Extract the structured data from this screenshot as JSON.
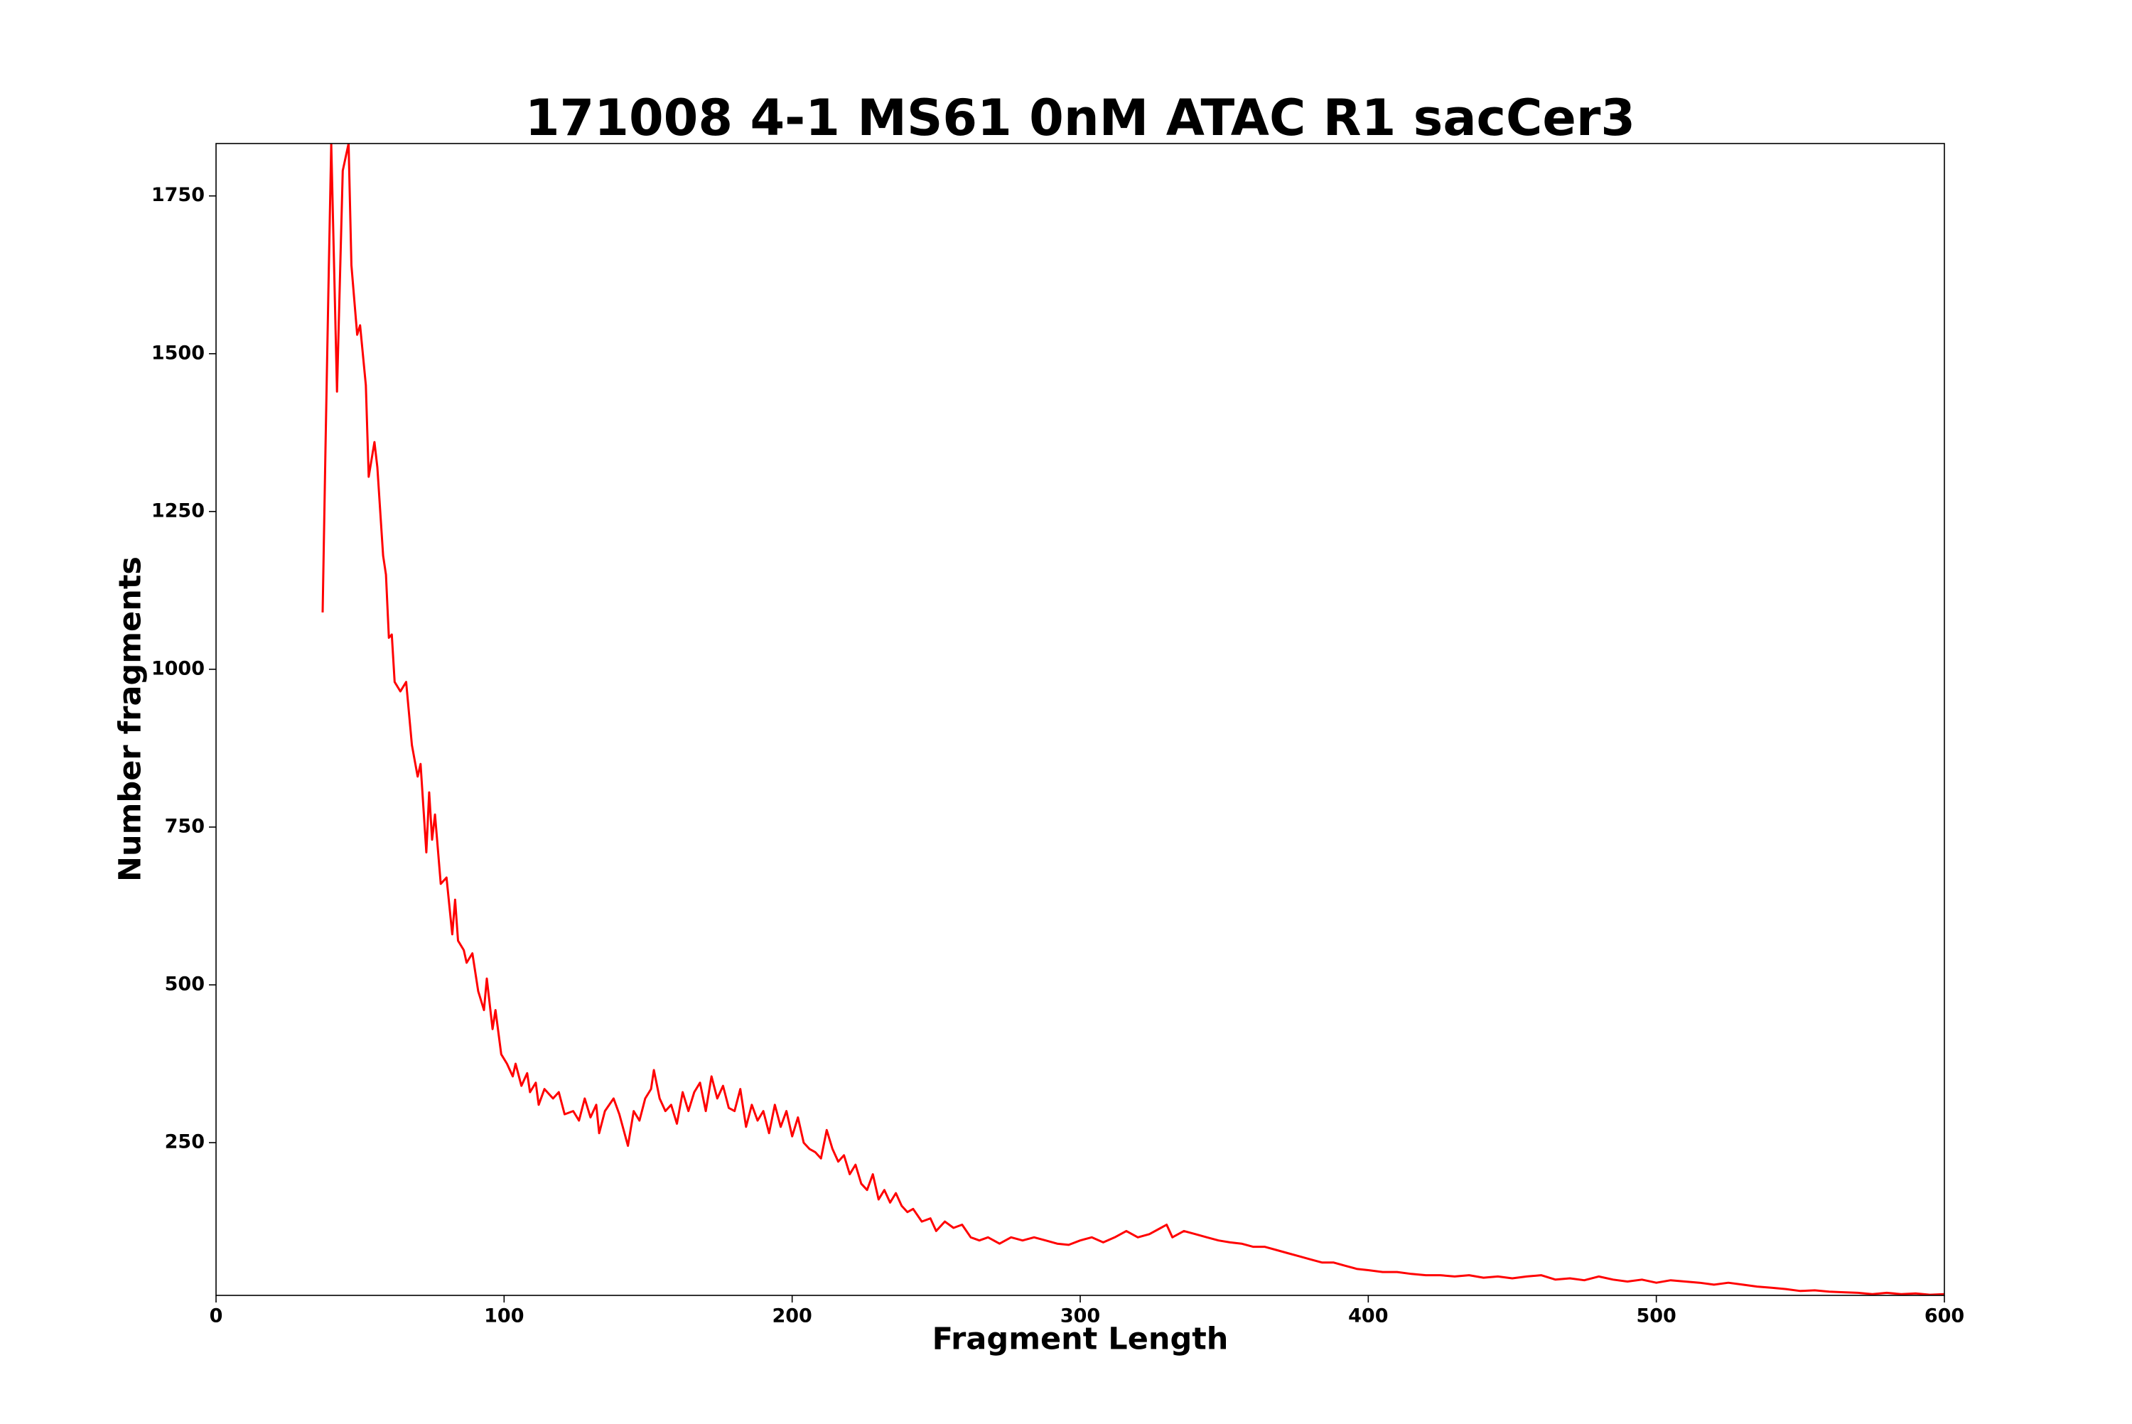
{
  "chart_data": {
    "type": "line",
    "title": "171008 4-1 MS61 0nM ATAC R1 sacCer3",
    "x_label": "Fragment Length",
    "y_label": "Number fragments",
    "xlim": [
      0,
      600
    ],
    "xticks": [
      0,
      100,
      200,
      300,
      400,
      500,
      600
    ],
    "ylim": [
      8,
      1833
    ],
    "yticks": [
      250,
      500,
      750,
      1000,
      1250,
      1500,
      1750
    ],
    "grid": false,
    "series": [
      {
        "name": "171008 4-1 MS61 0nM ATAC R1 sacCer3",
        "color": "#ff0000",
        "x": [
          37,
          38,
          39,
          40,
          42,
          44,
          46,
          47,
          49,
          50,
          52,
          53,
          55,
          56,
          58,
          59,
          60,
          61,
          62,
          64,
          66,
          68,
          70,
          71,
          73,
          74,
          75,
          76,
          78,
          80,
          82,
          83,
          84,
          86,
          87,
          89,
          91,
          93,
          94,
          96,
          97,
          99,
          101,
          103,
          104,
          106,
          108,
          109,
          111,
          112,
          114,
          117,
          119,
          121,
          124,
          126,
          128,
          130,
          132,
          133,
          135,
          138,
          140,
          143,
          145,
          147,
          149,
          151,
          152,
          154,
          156,
          158,
          160,
          162,
          164,
          166,
          168,
          170,
          172,
          174,
          176,
          178,
          180,
          182,
          184,
          186,
          188,
          190,
          192,
          194,
          196,
          198,
          200,
          202,
          204,
          206,
          208,
          210,
          212,
          214,
          216,
          218,
          220,
          222,
          224,
          226,
          228,
          230,
          232,
          234,
          236,
          238,
          240,
          242,
          245,
          248,
          250,
          253,
          256,
          259,
          262,
          265,
          268,
          272,
          276,
          280,
          284,
          288,
          292,
          296,
          300,
          304,
          308,
          312,
          316,
          320,
          324,
          328,
          330,
          332,
          336,
          340,
          344,
          348,
          352,
          356,
          360,
          364,
          368,
          372,
          376,
          380,
          384,
          388,
          392,
          396,
          400,
          405,
          410,
          415,
          420,
          425,
          430,
          435,
          440,
          445,
          450,
          455,
          460,
          465,
          470,
          475,
          480,
          485,
          490,
          495,
          500,
          505,
          510,
          515,
          520,
          525,
          530,
          535,
          540,
          545,
          550,
          555,
          560,
          565,
          570,
          575,
          580,
          585,
          590,
          595,
          600
        ],
        "values": [
          1090,
          1350,
          1600,
          1833,
          1440,
          1790,
          1833,
          1640,
          1530,
          1545,
          1450,
          1305,
          1360,
          1320,
          1180,
          1150,
          1050,
          1055,
          980,
          965,
          980,
          880,
          830,
          850,
          710,
          805,
          730,
          770,
          660,
          670,
          580,
          635,
          570,
          555,
          535,
          550,
          490,
          460,
          510,
          430,
          460,
          390,
          375,
          355,
          375,
          340,
          360,
          330,
          345,
          310,
          335,
          320,
          330,
          295,
          300,
          285,
          320,
          290,
          310,
          265,
          300,
          320,
          295,
          245,
          300,
          285,
          320,
          335,
          365,
          320,
          300,
          310,
          280,
          330,
          300,
          330,
          345,
          300,
          355,
          320,
          340,
          305,
          300,
          335,
          275,
          310,
          285,
          300,
          265,
          310,
          275,
          300,
          260,
          290,
          250,
          240,
          235,
          225,
          270,
          240,
          220,
          230,
          200,
          215,
          185,
          175,
          200,
          160,
          175,
          155,
          170,
          150,
          140,
          145,
          125,
          130,
          110,
          125,
          115,
          120,
          100,
          95,
          100,
          90,
          100,
          95,
          100,
          95,
          90,
          88,
          95,
          100,
          92,
          100,
          110,
          100,
          105,
          115,
          120,
          100,
          110,
          105,
          100,
          95,
          92,
          90,
          85,
          85,
          80,
          75,
          70,
          65,
          60,
          60,
          55,
          50,
          48,
          45,
          45,
          42,
          40,
          40,
          38,
          40,
          36,
          38,
          35,
          38,
          40,
          33,
          35,
          32,
          38,
          33,
          30,
          33,
          28,
          32,
          30,
          28,
          25,
          28,
          25,
          22,
          20,
          18,
          15,
          16,
          14,
          13,
          12,
          10,
          12,
          10,
          11,
          9,
          10
        ]
      }
    ]
  }
}
